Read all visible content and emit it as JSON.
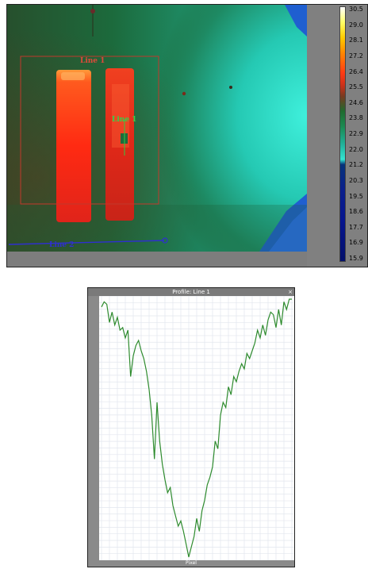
{
  "thermal": {
    "palette_ticks": [
      "30.5",
      "29.0",
      "28.1",
      "27.2",
      "26.4",
      "25.5",
      "24.6",
      "23.8",
      "22.9",
      "22.0",
      "21.2",
      "20.3",
      "19.5",
      "18.6",
      "17.7",
      "16.9",
      "15.9"
    ],
    "roi_labels": {
      "line1_red": "Line 1",
      "line1_green": "Line 1",
      "line2": "Line 2"
    },
    "colors": {
      "background_green": "#1e6b3a",
      "cyan": "#23d6c2",
      "hot_red": "#ff2a12",
      "roi_red": "#c0392b",
      "line_blue": "#2f2fd0"
    }
  },
  "profile": {
    "title": "Profile: Line 1",
    "close_glyph": "×",
    "xlabel": "Pixel",
    "line_color": "#2e8b2e"
  },
  "chart_data": {
    "type": "line",
    "title": "Profile: Line 1",
    "xlabel": "Pixel",
    "ylabel": "",
    "xlim": [
      0,
      72
    ],
    "ylim": [
      0,
      100
    ],
    "grid": true,
    "legend": "none",
    "series": [
      {
        "x": [
          0,
          1,
          2,
          3,
          4,
          5,
          6,
          7,
          8,
          9,
          10,
          11,
          12,
          13,
          14,
          15,
          16,
          17,
          18,
          19,
          20,
          21,
          22,
          23,
          24,
          25,
          26,
          27,
          28,
          29,
          30,
          31,
          32,
          33,
          34,
          35,
          36,
          37,
          38,
          39,
          40,
          41,
          42,
          43,
          44,
          45,
          46,
          47,
          48,
          49,
          50,
          51,
          52,
          53,
          54,
          55,
          56,
          57,
          58,
          59,
          60,
          61,
          62,
          63,
          64,
          65,
          66,
          67,
          68,
          69,
          70,
          71,
          72
        ],
        "values": [
          97,
          99,
          98,
          91,
          95,
          90,
          93,
          88,
          89,
          85,
          88,
          70,
          78,
          82,
          84,
          80,
          77,
          72,
          65,
          55,
          38,
          60,
          45,
          36,
          30,
          25,
          27,
          20,
          16,
          12,
          14,
          10,
          5,
          0,
          4,
          8,
          15,
          10,
          18,
          22,
          28,
          31,
          35,
          45,
          42,
          55,
          60,
          58,
          66,
          63,
          70,
          68,
          72,
          75,
          73,
          79,
          77,
          80,
          83,
          88,
          85,
          90,
          86,
          92,
          95,
          94,
          89,
          96,
          90,
          99,
          96,
          100,
          100
        ]
      }
    ]
  }
}
